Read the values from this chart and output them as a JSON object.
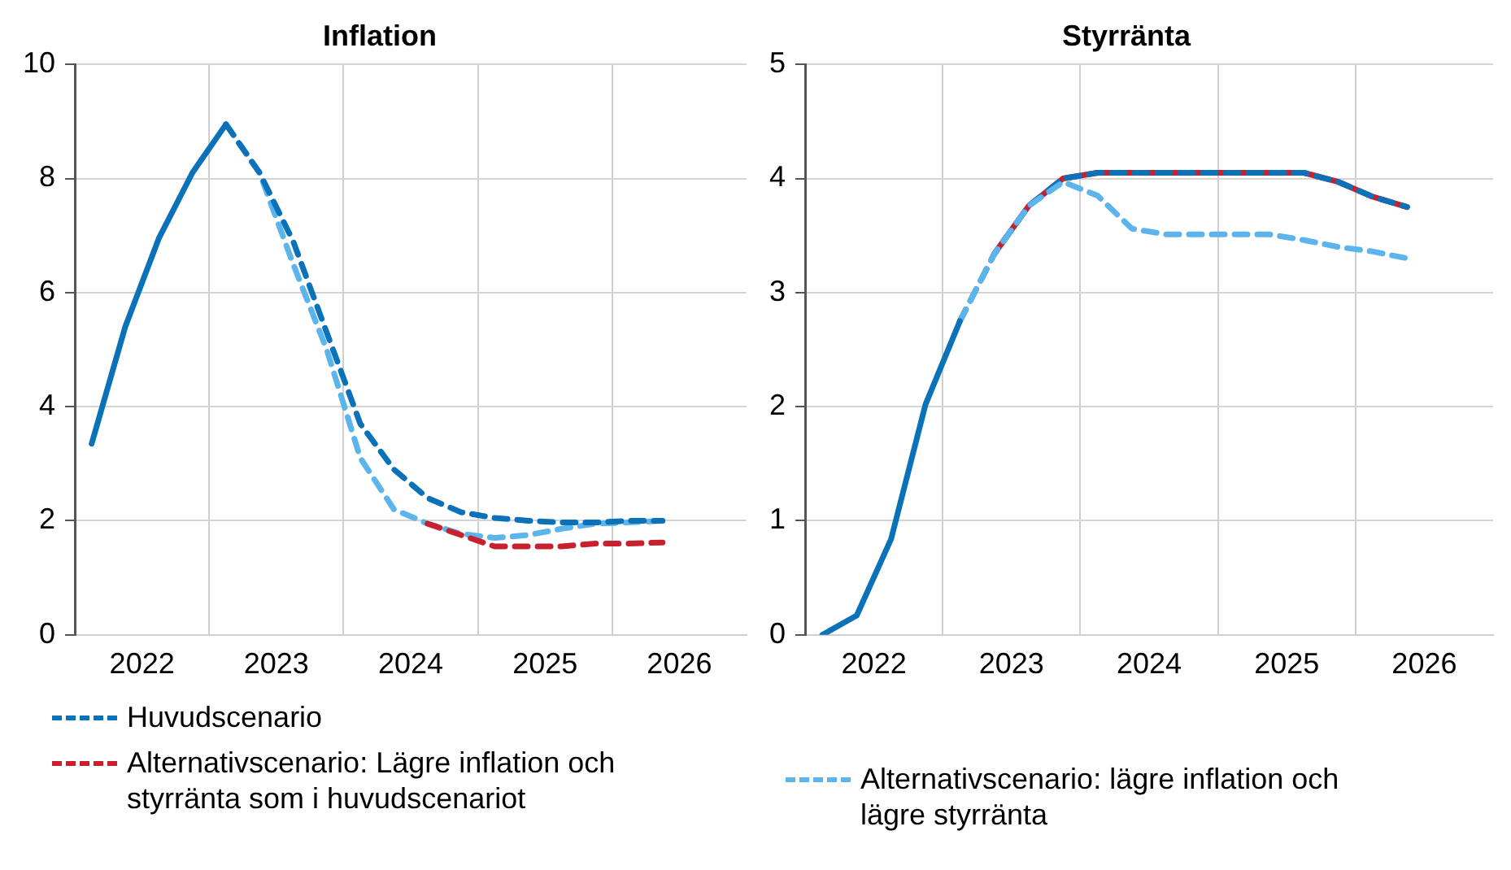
{
  "chart_data": [
    {
      "type": "line",
      "title": "Inflation",
      "x": [
        2022.125,
        2022.375,
        2022.625,
        2022.875,
        2023.125,
        2023.375,
        2023.625,
        2023.875,
        2024.125,
        2024.375,
        2024.625,
        2024.875,
        2025.125,
        2025.375,
        2025.625,
        2025.875,
        2026.125,
        2026.375
      ],
      "xlim": [
        2022,
        2027
      ],
      "xticks": [
        {
          "value": 2022.5,
          "label": "2022"
        },
        {
          "value": 2023,
          "label": null
        },
        {
          "value": 2023.5,
          "label": "2023"
        },
        {
          "value": 2024,
          "label": null
        },
        {
          "value": 2024.5,
          "label": "2024"
        },
        {
          "value": 2025,
          "label": null
        },
        {
          "value": 2025.5,
          "label": "2025"
        },
        {
          "value": 2026,
          "label": null
        },
        {
          "value": 2026.5,
          "label": "2026"
        }
      ],
      "ylim": [
        0,
        10
      ],
      "yticks": [
        0,
        2,
        4,
        6,
        8,
        10
      ],
      "grid": true,
      "legend": "bottom",
      "marker": "none",
      "series": [
        {
          "color": "#0b72b9",
          "line_style": "solid",
          "values": [
            3.35,
            5.4,
            6.95,
            8.1,
            8.95,
            null,
            null,
            null,
            null,
            null,
            null,
            null,
            null,
            null,
            null,
            null,
            null,
            null
          ]
        },
        {
          "name": "Huvudscenario",
          "color": "#0b72b9",
          "line_style": "dashed",
          "values": [
            null,
            null,
            null,
            null,
            8.95,
            8.1,
            6.9,
            5.3,
            3.7,
            2.9,
            2.4,
            2.15,
            2.05,
            2.0,
            1.97,
            1.97,
            2.0,
            2.0
          ]
        },
        {
          "name": "Alternativscenario: Lägre inflation och styrränta som i huvudscenariot",
          "color": "#c8202f",
          "line_style": "dashed",
          "values": [
            null,
            null,
            null,
            null,
            null,
            null,
            null,
            null,
            null,
            null,
            1.95,
            1.75,
            1.55,
            1.55,
            1.55,
            1.6,
            1.6,
            1.62
          ]
        },
        {
          "color": "#5cb4ec",
          "line_style": "dashed",
          "values": [
            null,
            null,
            null,
            null,
            8.95,
            8.1,
            6.5,
            5.0,
            3.1,
            2.2,
            1.95,
            1.77,
            1.7,
            1.75,
            1.86,
            1.95,
            1.97,
            2.0
          ]
        }
      ]
    },
    {
      "type": "line",
      "title": "Styrränta",
      "x": [
        2022.125,
        2022.375,
        2022.625,
        2022.875,
        2023.125,
        2023.375,
        2023.625,
        2023.875,
        2024.125,
        2024.375,
        2024.625,
        2024.875,
        2025.125,
        2025.375,
        2025.625,
        2025.875,
        2026.125,
        2026.375
      ],
      "xlim": [
        2022,
        2027
      ],
      "xticks": [
        {
          "value": 2022.5,
          "label": "2022"
        },
        {
          "value": 2023,
          "label": null
        },
        {
          "value": 2023.5,
          "label": "2023"
        },
        {
          "value": 2024,
          "label": null
        },
        {
          "value": 2024.5,
          "label": "2024"
        },
        {
          "value": 2025,
          "label": null
        },
        {
          "value": 2025.5,
          "label": "2025"
        },
        {
          "value": 2026,
          "label": null
        },
        {
          "value": 2026.5,
          "label": "2026"
        }
      ],
      "ylim": [
        0,
        5
      ],
      "yticks": [
        0,
        1,
        2,
        3,
        4,
        5
      ],
      "grid": true,
      "legend": "bottom",
      "marker": "none",
      "series": [
        {
          "color": "#0b72b9",
          "line_style": "solid",
          "values": [
            0,
            0.17,
            0.84,
            2.02,
            2.75,
            null,
            null,
            null,
            null,
            null,
            null,
            null,
            null,
            null,
            null,
            null,
            null,
            null
          ]
        },
        {
          "name": "Alternativscenario: lägre inflation och lägre styrränta",
          "color": "#5cb4ec",
          "line_style": "dashed",
          "values": [
            null,
            null,
            null,
            null,
            2.75,
            3.34,
            3.76,
            3.97,
            3.85,
            3.56,
            3.51,
            3.51,
            3.51,
            3.51,
            3.46,
            3.4,
            3.36,
            3.3
          ]
        },
        {
          "color": "#0b72b9",
          "line_style": "dashed",
          "values": [
            null,
            null,
            null,
            null,
            2.75,
            3.34,
            3.76,
            4.0,
            4.05,
            4.05,
            4.05,
            4.05,
            4.05,
            4.05,
            4.05,
            3.97,
            3.84,
            3.75
          ]
        },
        {
          "color": "#c8202f",
          "line_style": "solid",
          "values": [
            null,
            null,
            null,
            null,
            null,
            3.34,
            3.76,
            4.0,
            4.05,
            4.05,
            4.05,
            4.05,
            4.05,
            4.05,
            4.05,
            3.97,
            3.84,
            3.75
          ]
        }
      ]
    }
  ]
}
